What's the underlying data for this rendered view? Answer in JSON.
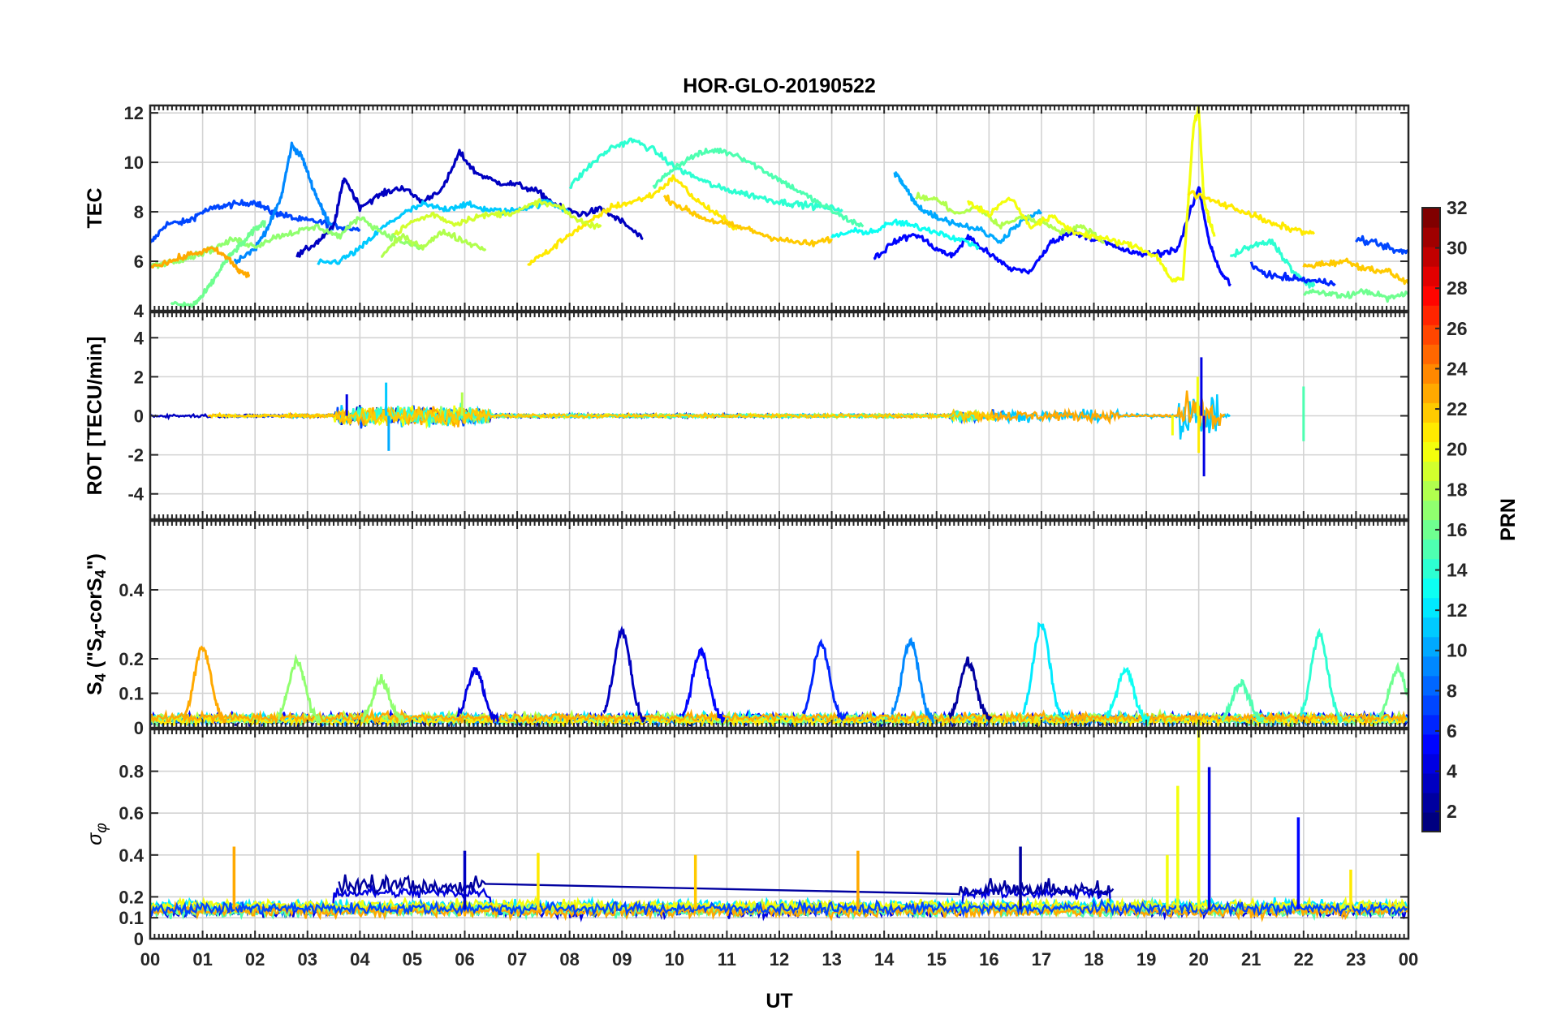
{
  "figure": {
    "title": "HOR-GLO-20190522",
    "xlabel": "UT"
  },
  "chart_data": [
    {
      "id": "tec",
      "type": "line",
      "ylabel": "TEC",
      "ylim": [
        4,
        12.3
      ],
      "yticks": [
        4,
        6,
        8,
        10,
        12
      ],
      "grid": true,
      "series": [
        {
          "prn": 7,
          "x": [
            0,
            0.3,
            0.7,
            1.0,
            1.3,
            1.6,
            2.0,
            2.3,
            2.5,
            2.8,
            3.2,
            3.6,
            4.0
          ],
          "y": [
            6.7,
            7.5,
            7.6,
            8.0,
            8.2,
            8.3,
            8.4,
            8.0,
            7.9,
            7.7,
            7.6,
            7.4,
            7.3
          ]
        },
        {
          "prn": 9,
          "x": [
            1.6,
            2.0,
            2.3,
            2.5,
            2.7,
            2.9,
            3.1,
            3.3,
            3.5
          ],
          "y": [
            6.0,
            6.5,
            7.6,
            8.6,
            10.7,
            10.2,
            9.0,
            8.0,
            7.3
          ]
        },
        {
          "prn": 3,
          "x": [
            2.8,
            3.2,
            3.5,
            3.7,
            4.0,
            4.4,
            4.8,
            5.2,
            5.6,
            5.9,
            6.2,
            6.6,
            7.0,
            7.4,
            7.8,
            8.2,
            8.6,
            9.0,
            9.4
          ],
          "y": [
            6.2,
            6.8,
            7.4,
            9.4,
            8.2,
            8.7,
            9.0,
            8.4,
            9.0,
            10.4,
            9.6,
            9.2,
            9.1,
            8.8,
            8.2,
            7.9,
            8.1,
            7.6,
            6.9
          ]
        },
        {
          "prn": 11,
          "x": [
            3.2,
            3.6,
            4.0,
            4.4,
            4.8,
            5.2,
            5.6,
            6.0,
            6.4,
            6.8,
            7.2,
            7.6,
            8.0
          ],
          "y": [
            5.9,
            6.0,
            6.5,
            7.3,
            7.9,
            8.3,
            8.1,
            8.3,
            8.1,
            8.0,
            8.2,
            8.4,
            8.0
          ]
        },
        {
          "prn": 14,
          "x": [
            8.0,
            8.4,
            8.8,
            9.2,
            9.6,
            10.0,
            10.4,
            10.8,
            11.2,
            11.6,
            12.0,
            12.4,
            12.8,
            13.2
          ],
          "y": [
            9.0,
            9.9,
            10.6,
            10.9,
            10.5,
            9.8,
            9.4,
            9.0,
            8.8,
            8.6,
            8.4,
            8.3,
            8.2,
            8.1
          ]
        },
        {
          "prn": 15,
          "x": [
            9.6,
            10.0,
            10.4,
            10.8,
            11.2,
            11.6,
            12.0,
            12.4,
            12.8,
            13.2,
            13.6
          ],
          "y": [
            9.0,
            9.8,
            10.3,
            10.5,
            10.3,
            9.8,
            9.3,
            8.8,
            8.3,
            7.8,
            7.4
          ]
        },
        {
          "prn": 21,
          "x": [
            7.2,
            7.6,
            8.0,
            8.4,
            8.8,
            9.2,
            9.6,
            10.0,
            10.4,
            10.8,
            11.2
          ],
          "y": [
            5.9,
            6.4,
            7.1,
            7.6,
            8.2,
            8.4,
            8.7,
            9.4,
            8.5,
            7.9,
            7.3
          ]
        },
        {
          "prn": 19,
          "x": [
            4.6,
            5.0,
            5.4,
            5.8,
            6.2,
            6.6,
            7.0,
            7.4,
            7.8,
            8.2,
            8.6
          ],
          "y": [
            7.0,
            7.6,
            7.9,
            7.5,
            7.8,
            7.9,
            8.0,
            8.4,
            8.2,
            7.6,
            7.4
          ]
        },
        {
          "prn": 22,
          "x": [
            9.8,
            10.2,
            10.6,
            11.0,
            11.4,
            11.8,
            12.2,
            12.6,
            13.0
          ],
          "y": [
            8.6,
            8.1,
            7.7,
            7.5,
            7.3,
            7.0,
            6.8,
            6.7,
            6.9
          ]
        },
        {
          "prn": 17,
          "x": [
            0,
            0.4,
            0.8,
            1.2,
            1.6,
            2.0,
            2.4,
            2.8,
            3.2,
            3.6,
            4.0,
            4.4,
            4.8,
            5.2
          ],
          "y": [
            5.8,
            6.0,
            6.2,
            6.5,
            6.9,
            6.6,
            7.0,
            7.2,
            7.4,
            7.0,
            7.8,
            7.2,
            6.8,
            6.5
          ]
        },
        {
          "prn": 16,
          "x": [
            0.4,
            0.8,
            1.0,
            1.2,
            1.4,
            1.6,
            1.8,
            2.0,
            2.2
          ],
          "y": [
            4.3,
            4.2,
            4.6,
            5.2,
            5.9,
            6.4,
            6.8,
            7.3,
            7.6
          ]
        },
        {
          "prn": 23,
          "x": [
            0,
            0.4,
            0.8,
            1.2,
            1.5,
            1.7,
            1.9
          ],
          "y": [
            5.8,
            6.0,
            6.3,
            6.5,
            6.1,
            5.6,
            5.4
          ]
        },
        {
          "prn": 18,
          "x": [
            4.4,
            4.8,
            5.2,
            5.6,
            6.0,
            6.4
          ],
          "y": [
            6.2,
            7.0,
            6.6,
            7.2,
            6.8,
            6.5
          ]
        },
        {
          "prn": 5,
          "x": [
            13.8,
            14.2,
            14.6,
            15.0,
            15.3,
            15.6,
            16.0,
            16.4,
            16.8,
            17.2,
            17.6,
            18.0,
            18.4,
            18.8,
            19.2,
            19.6,
            20.0,
            20.2,
            20.4,
            20.6
          ],
          "y": [
            6.1,
            6.8,
            7.1,
            6.5,
            6.2,
            7.0,
            6.3,
            5.7,
            5.6,
            6.8,
            7.2,
            6.9,
            6.6,
            6.3,
            6.3,
            6.5,
            9.0,
            6.8,
            5.6,
            5.1
          ]
        },
        {
          "prn": 10,
          "x": [
            14.2,
            14.4,
            14.6,
            14.8,
            15.0,
            15.4,
            15.8,
            16.2,
            16.6,
            17.0
          ],
          "y": [
            9.6,
            9.0,
            8.3,
            8.0,
            7.8,
            7.5,
            7.3,
            6.8,
            7.6,
            8.0
          ]
        },
        {
          "prn": 13,
          "x": [
            13.0,
            13.4,
            13.8,
            14.2,
            14.6,
            15.0,
            15.4,
            15.8
          ],
          "y": [
            7.0,
            7.2,
            7.2,
            7.6,
            7.4,
            7.2,
            6.9,
            6.6
          ]
        },
        {
          "prn": 18,
          "x": [
            14.6,
            15.0,
            15.4,
            15.8,
            16.2,
            16.6,
            17.0,
            17.4,
            17.8,
            18.2
          ],
          "y": [
            8.6,
            8.5,
            7.9,
            8.2,
            7.4,
            7.8,
            7.6,
            7.2,
            7.4,
            6.8
          ]
        },
        {
          "prn": 20,
          "x": [
            15.6,
            16.0,
            16.4,
            16.8,
            17.2,
            17.6,
            18.0,
            18.4,
            18.8,
            19.2,
            19.5,
            19.7,
            19.9,
            20.0,
            20.1,
            20.3
          ],
          "y": [
            8.4,
            7.9,
            8.6,
            7.4,
            7.8,
            7.2,
            7.0,
            6.8,
            6.6,
            6.2,
            5.2,
            5.3,
            11.5,
            12.2,
            8.4,
            7.0
          ]
        },
        {
          "prn": 21,
          "x": [
            19.8,
            20.2,
            20.6,
            21.0,
            21.4,
            21.8,
            22.2
          ],
          "y": [
            8.8,
            8.5,
            8.2,
            7.9,
            7.5,
            7.3,
            7.1
          ]
        },
        {
          "prn": 14,
          "x": [
            20.6,
            21.0,
            21.4,
            21.8,
            22.0,
            22.2
          ],
          "y": [
            6.2,
            6.6,
            6.8,
            5.6,
            5.2,
            5.0
          ]
        },
        {
          "prn": 6,
          "x": [
            21.0,
            21.4,
            21.8,
            22.2,
            22.6
          ],
          "y": [
            5.8,
            5.4,
            5.3,
            5.2,
            5.1
          ]
        },
        {
          "prn": 16,
          "x": [
            22.0,
            22.4,
            22.8,
            23.2,
            23.6,
            24.0
          ],
          "y": [
            4.8,
            4.7,
            4.6,
            4.8,
            4.5,
            4.7
          ]
        },
        {
          "prn": 22,
          "x": [
            22.0,
            22.4,
            22.8,
            23.2,
            23.6,
            24.0
          ],
          "y": [
            5.8,
            5.9,
            6.0,
            5.7,
            5.6,
            5.1
          ]
        },
        {
          "prn": 7,
          "x": [
            23.0,
            23.4,
            23.8,
            24.0
          ],
          "y": [
            6.9,
            6.7,
            6.4,
            6.4
          ]
        }
      ]
    },
    {
      "id": "rot",
      "type": "line",
      "ylabel": "ROT [TECU/min]",
      "ylim": [
        -5.3,
        5.3
      ],
      "yticks": [
        -4,
        -2,
        0,
        2,
        4
      ],
      "grid": true,
      "features": "near-zero noise for all PRNs; bursts near 03.6-06.5 UT (about -1.8 to +1.7) and a large spike near 20.0 UT (about -3.1 to +3.0); smaller burst near 22.0 UT"
    },
    {
      "id": "s4",
      "type": "line",
      "ylabel": "S4 (\"S4-corS4\")",
      "ylim": [
        0,
        0.6
      ],
      "yticks": [
        0,
        0.1,
        0.2,
        0.4
      ],
      "grid": true,
      "peaks": [
        {
          "prn": 23,
          "x": 1.0,
          "y": 0.23
        },
        {
          "prn": 17,
          "x": 2.8,
          "y": 0.19
        },
        {
          "prn": 17,
          "x": 4.4,
          "y": 0.14
        },
        {
          "prn": 4,
          "x": 6.2,
          "y": 0.17
        },
        {
          "prn": 3,
          "x": 9.0,
          "y": 0.28
        },
        {
          "prn": 5,
          "x": 10.5,
          "y": 0.22
        },
        {
          "prn": 6,
          "x": 12.8,
          "y": 0.24
        },
        {
          "prn": 9,
          "x": 14.5,
          "y": 0.25
        },
        {
          "prn": 2,
          "x": 15.6,
          "y": 0.19
        },
        {
          "prn": 12,
          "x": 17.0,
          "y": 0.3
        },
        {
          "prn": 13,
          "x": 18.6,
          "y": 0.17
        },
        {
          "prn": 15,
          "x": 20.8,
          "y": 0.13
        },
        {
          "prn": 14,
          "x": 22.3,
          "y": 0.27
        },
        {
          "prn": 16,
          "x": 23.8,
          "y": 0.17
        }
      ]
    },
    {
      "id": "sigma",
      "type": "line",
      "ylabel": "σφ",
      "ylim": [
        0,
        1.0
      ],
      "yticks": [
        0,
        0.1,
        0.2,
        0.4,
        0.6,
        0.8
      ],
      "grid": true,
      "spikes": [
        {
          "prn": 23,
          "x": 1.6,
          "y": 0.44
        },
        {
          "prn": 3,
          "x": 6.0,
          "y": 0.42
        },
        {
          "prn": 21,
          "x": 7.4,
          "y": 0.41
        },
        {
          "prn": 22,
          "x": 10.4,
          "y": 0.4
        },
        {
          "prn": 23,
          "x": 13.5,
          "y": 0.42
        },
        {
          "prn": 2,
          "x": 16.6,
          "y": 0.44
        },
        {
          "prn": 20,
          "x": 19.4,
          "y": 0.4
        },
        {
          "prn": 20,
          "x": 19.6,
          "y": 0.73
        },
        {
          "prn": 20,
          "x": 20.0,
          "y": 1.0
        },
        {
          "prn": 4,
          "x": 20.2,
          "y": 0.82
        },
        {
          "prn": 5,
          "x": 21.9,
          "y": 0.58
        },
        {
          "prn": 21,
          "x": 22.9,
          "y": 0.33
        }
      ]
    }
  ],
  "xaxis": {
    "range": [
      0,
      24
    ],
    "tick_labels": [
      "00",
      "01",
      "02",
      "03",
      "04",
      "05",
      "06",
      "07",
      "08",
      "09",
      "10",
      "11",
      "12",
      "13",
      "14",
      "15",
      "16",
      "17",
      "18",
      "19",
      "20",
      "21",
      "22",
      "23",
      "00"
    ]
  },
  "colorbar": {
    "label": "PRN",
    "range": [
      1,
      32
    ],
    "tick_labels": [
      "2",
      "4",
      "6",
      "8",
      "10",
      "12",
      "14",
      "16",
      "18",
      "20",
      "22",
      "24",
      "26",
      "28",
      "30",
      "32"
    ],
    "colormap": "jet"
  }
}
